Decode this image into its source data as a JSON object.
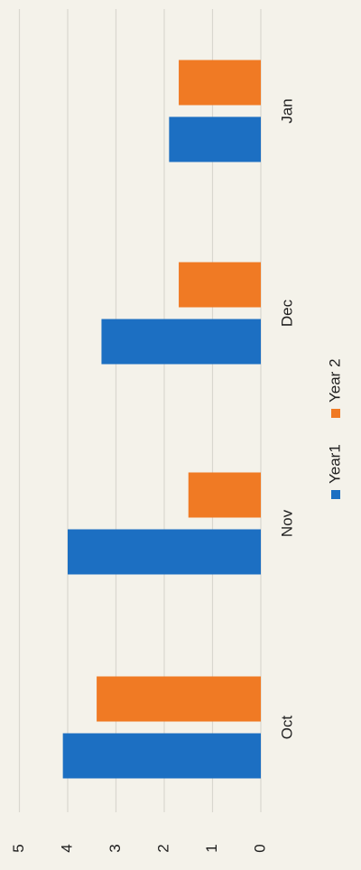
{
  "chart_data": {
    "type": "bar",
    "orientation": "rotated-90",
    "categories": [
      "Oct",
      "Nov",
      "Dec",
      "Jan"
    ],
    "series": [
      {
        "name": "Year1",
        "values": [
          4.1,
          4.0,
          3.3,
          1.9
        ],
        "color": "#1c6fc2"
      },
      {
        "name": "Year 2",
        "values": [
          3.4,
          1.5,
          1.7,
          1.7
        ],
        "color": "#f07a24"
      }
    ],
    "ylim": [
      0,
      5
    ],
    "yticks": [
      0,
      1,
      2,
      3,
      4,
      5
    ],
    "grid": true,
    "legend_position": "bottom"
  }
}
